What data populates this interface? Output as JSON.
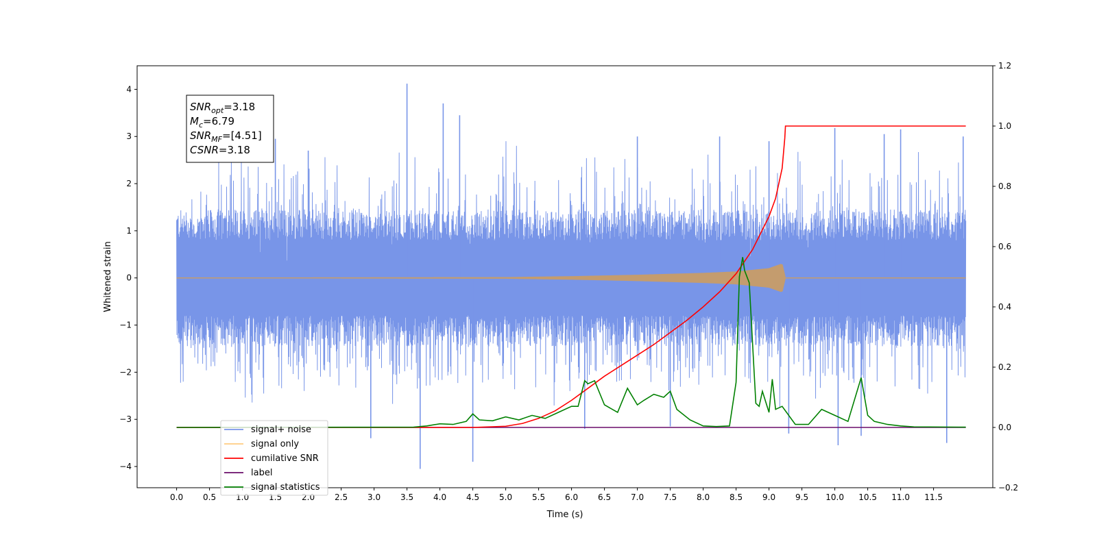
{
  "chart_data": {
    "type": "line",
    "xlabel": "Time (s)",
    "ylabel": "Whitened strain",
    "ylabel_right": "",
    "xlim": [
      -0.6,
      12.4
    ],
    "ylim": [
      -4.45,
      4.5
    ],
    "ylim_right": [
      -0.2,
      1.2
    ],
    "x_ticks": [
      0.0,
      0.5,
      1.0,
      1.5,
      2.0,
      2.5,
      3.0,
      3.5,
      4.0,
      4.5,
      5.0,
      5.5,
      6.0,
      6.5,
      7.0,
      7.5,
      8.0,
      8.5,
      9.0,
      9.5,
      10.0,
      10.5,
      11.0,
      11.5
    ],
    "x_tick_labels": [
      "0.0",
      "0.5",
      "1.0",
      "1.5",
      "2.0",
      "2.5",
      "3.0",
      "3.5",
      "4.0",
      "4.5",
      "5.0",
      "5.5",
      "6.0",
      "6.5",
      "7.0",
      "7.5",
      "8.0",
      "8.5",
      "9.0",
      "9.5",
      "10.0",
      "10.5",
      "11.0",
      "11.5"
    ],
    "y_ticks": [
      -4,
      -3,
      -2,
      -1,
      0,
      1,
      2,
      3,
      4
    ],
    "y_tick_labels": [
      "−4",
      "−3",
      "−2",
      "−1",
      "0",
      "1",
      "2",
      "3",
      "4"
    ],
    "y_right_ticks": [
      -0.2,
      0.0,
      0.2,
      0.4,
      0.6,
      0.8,
      1.0,
      1.2
    ],
    "y_right_tick_labels": [
      "−0.2",
      "0.0",
      "0.2",
      "0.4",
      "0.6",
      "0.8",
      "1.0",
      "1.2"
    ],
    "grid": false,
    "legend_placement": "lower-left",
    "annotation": {
      "lines": [
        {
          "sym": "SNR",
          "sub": "opt",
          "val": "=3.18"
        },
        {
          "sym": "M",
          "sub": "c",
          "val": "=6.79"
        },
        {
          "sym": "SNR",
          "sub": "MF",
          "val": "=[4.51]"
        },
        {
          "sym": "CSNR",
          "sub": "",
          "val": "=3.18"
        }
      ]
    },
    "series": [
      {
        "name": "signal+ noise",
        "color": "#7895e8",
        "axis": "left",
        "kind": "noise",
        "x_range": [
          0.0,
          11.99
        ],
        "envelope": [
          -1.45,
          1.45
        ],
        "spikes_up": [
          [
            3.5,
            4.12
          ],
          [
            4.05,
            3.7
          ],
          [
            4.3,
            3.45
          ],
          [
            10.0,
            3.18
          ],
          [
            11.0,
            3.15
          ],
          [
            11.95,
            3.0
          ],
          [
            1.5,
            2.95
          ],
          [
            2.0,
            2.7
          ],
          [
            7.0,
            3.0
          ],
          [
            8.25,
            3.0
          ],
          [
            9.0,
            2.9
          ],
          [
            10.75,
            3.05
          ]
        ],
        "spikes_down": [
          [
            3.7,
            -4.05
          ],
          [
            4.5,
            -3.9
          ],
          [
            2.95,
            -3.4
          ],
          [
            10.05,
            -3.55
          ],
          [
            11.7,
            -3.5
          ],
          [
            6.2,
            -3.2
          ],
          [
            10.4,
            -3.35
          ],
          [
            7.5,
            -3.15
          ],
          [
            9.3,
            -3.3
          ]
        ]
      },
      {
        "name": "signal only",
        "color": "#c49c6e",
        "axis": "left",
        "kind": "chirp",
        "x_range": [
          0.0,
          9.25
        ],
        "amplitude": [
          [
            0.0,
            0.0
          ],
          [
            5.0,
            0.01
          ],
          [
            6.0,
            0.03
          ],
          [
            7.0,
            0.06
          ],
          [
            8.0,
            0.1
          ],
          [
            8.5,
            0.13
          ],
          [
            9.0,
            0.2
          ],
          [
            9.2,
            0.3
          ],
          [
            9.25,
            0.0
          ]
        ]
      },
      {
        "name": "cumilative SNR",
        "color": "#ff0000",
        "axis": "right",
        "x": [
          0.0,
          4.5,
          5.0,
          5.25,
          5.5,
          5.75,
          6.0,
          6.25,
          6.5,
          6.75,
          7.0,
          7.25,
          7.5,
          7.75,
          8.0,
          8.25,
          8.5,
          8.75,
          9.0,
          9.1,
          9.2,
          9.24,
          9.25,
          11.99
        ],
        "y": [
          0.0,
          0.0,
          0.004,
          0.013,
          0.03,
          0.055,
          0.09,
          0.13,
          0.17,
          0.205,
          0.24,
          0.275,
          0.315,
          0.355,
          0.4,
          0.45,
          0.51,
          0.59,
          0.7,
          0.76,
          0.86,
          0.96,
          1.0,
          1.0
        ]
      },
      {
        "name": "label",
        "color": "#6a0c6a",
        "axis": "right",
        "x": [
          0.0,
          11.99
        ],
        "y": [
          0.0,
          0.0
        ]
      },
      {
        "name": "signal statistics",
        "color": "#008000",
        "axis": "right",
        "x": [
          0.0,
          3.6,
          3.8,
          4.0,
          4.2,
          4.4,
          4.5,
          4.6,
          4.8,
          5.0,
          5.2,
          5.4,
          5.6,
          5.8,
          6.0,
          6.1,
          6.2,
          6.25,
          6.35,
          6.5,
          6.7,
          6.85,
          7.0,
          7.1,
          7.25,
          7.4,
          7.5,
          7.6,
          7.8,
          8.0,
          8.2,
          8.4,
          8.5,
          8.55,
          8.6,
          8.63,
          8.7,
          8.8,
          8.85,
          8.9,
          9.0,
          9.05,
          9.1,
          9.2,
          9.4,
          9.6,
          9.8,
          10.0,
          10.2,
          10.4,
          10.5,
          10.6,
          10.8,
          11.0,
          11.2,
          11.99
        ],
        "y": [
          0.0,
          0.001,
          0.005,
          0.012,
          0.01,
          0.02,
          0.045,
          0.025,
          0.022,
          0.035,
          0.025,
          0.04,
          0.03,
          0.05,
          0.07,
          0.07,
          0.155,
          0.145,
          0.155,
          0.075,
          0.05,
          0.13,
          0.075,
          0.09,
          0.11,
          0.1,
          0.12,
          0.06,
          0.025,
          0.005,
          0.003,
          0.005,
          0.15,
          0.5,
          0.565,
          0.52,
          0.48,
          0.08,
          0.07,
          0.12,
          0.05,
          0.16,
          0.06,
          0.07,
          0.01,
          0.01,
          0.06,
          0.04,
          0.02,
          0.165,
          0.04,
          0.02,
          0.01,
          0.005,
          0.002,
          0.001
        ]
      }
    ],
    "legend": [
      {
        "label": "signal+ noise",
        "color": "#7895e8"
      },
      {
        "label": "signal only",
        "color": "#ffcc80"
      },
      {
        "label": "cumilative SNR",
        "color": "#ff0000"
      },
      {
        "label": "label",
        "color": "#6a0c6a"
      },
      {
        "label": "signal statistics",
        "color": "#008000"
      }
    ]
  }
}
